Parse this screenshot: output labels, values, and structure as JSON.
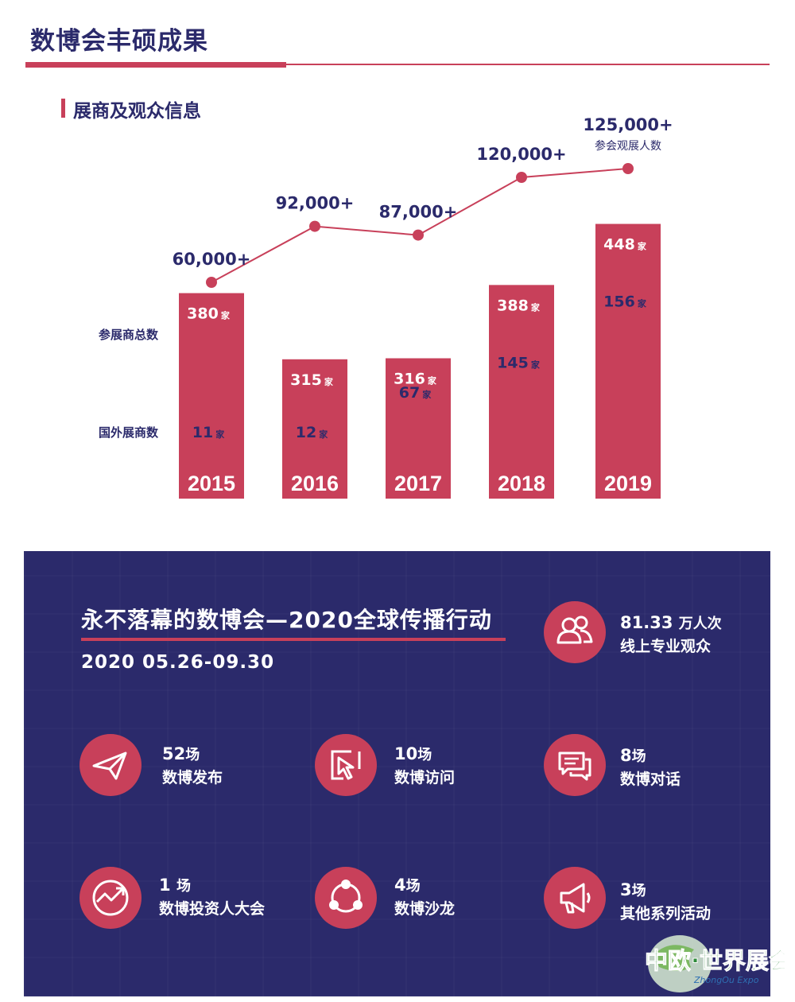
{
  "header": {
    "title": "数博会丰硕成果",
    "section_title": "展商及观众信息"
  },
  "chart_data": {
    "type": "bar",
    "categories": [
      "2015",
      "2016",
      "2017",
      "2018",
      "2019"
    ],
    "series": [
      {
        "name": "参展商总数",
        "values": [
          380,
          315,
          316,
          388,
          448
        ],
        "labels": [
          "380",
          "315",
          "316",
          "388",
          "448"
        ],
        "unit": "家"
      },
      {
        "name": "国外展商数",
        "values": [
          11,
          12,
          67,
          145,
          156
        ],
        "labels": [
          "11",
          "12",
          "67",
          "145",
          "156"
        ],
        "unit": "家"
      },
      {
        "name": "参会观展人数",
        "values": [
          60000,
          92000,
          87000,
          120000,
          125000
        ],
        "labels": [
          "60,000+",
          "92,000+",
          "87,000+",
          "120,000+",
          "125,000+"
        ]
      }
    ],
    "row_labels": {
      "total": "参展商总数",
      "foreign": "国外展商数"
    },
    "line_label": "参会观展人数",
    "colors": {
      "bar": "#c8405a",
      "line": "#c8405a",
      "text_dark": "#2b2a6b"
    }
  },
  "event": {
    "title": "永不落幕的数博会—2020全球传播行动",
    "date": "2020 05.26-09.30",
    "headline_stat": {
      "number": "81.33",
      "unit": "万人次",
      "label": "线上专业观众",
      "icon": "people-icon"
    },
    "stats": [
      {
        "number": "52",
        "unit": "场",
        "label": "数博发布",
        "icon": "paper-plane-icon"
      },
      {
        "number": "10",
        "unit": "场",
        "label": "数博访问",
        "icon": "cursor-click-icon"
      },
      {
        "number": "8",
        "unit": "场",
        "label": "数博对话",
        "icon": "chat-bubbles-icon"
      },
      {
        "number": "1",
        "unit": "场",
        "label": "数博投资人大会",
        "icon": "trend-up-icon"
      },
      {
        "number": "4",
        "unit": "场",
        "label": "数博沙龙",
        "icon": "network-icon"
      },
      {
        "number": "3",
        "unit": "场",
        "label": "其他系列活动",
        "icon": "megaphone-icon"
      }
    ],
    "colors": {
      "panel": "#2b2a6b",
      "accent": "#c8405a"
    }
  },
  "logo": {
    "main": "中欧·世界展会",
    "sub": "ZhongOu Expo"
  }
}
